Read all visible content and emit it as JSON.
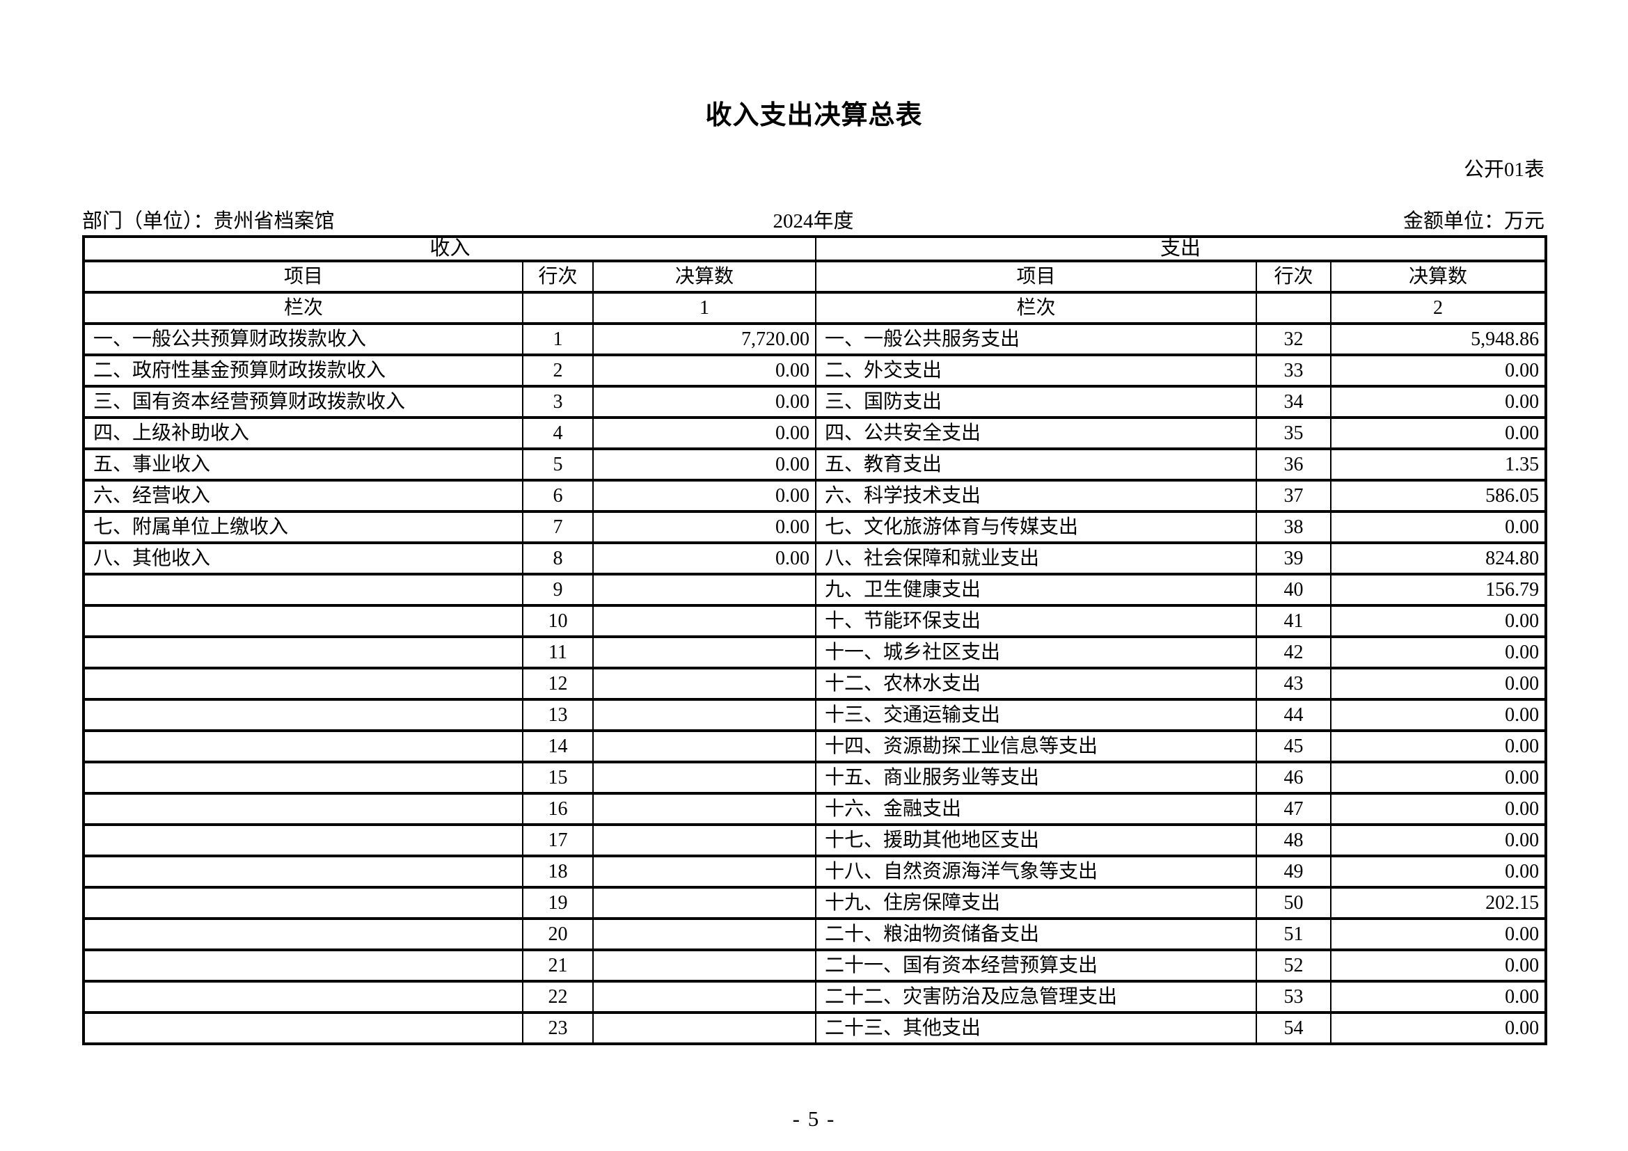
{
  "page": {
    "title": "收入支出决算总表",
    "table_code": "公开01表",
    "department": "部门（单位）：贵州省档案馆",
    "fiscal_year": "2024年度",
    "unit_note": "金额单位：万元",
    "page_number": "- 5 -"
  },
  "colors": {
    "text": "#000000",
    "border": "#000000",
    "background": "#ffffff"
  },
  "table": {
    "income_section_label": "收入",
    "expense_section_label": "支出",
    "item_col_label": "项目",
    "line_col_label": "行次",
    "amount_col_label": "决算数",
    "index_row_label": "栏次",
    "income_col_index": "1",
    "expense_col_index": "2",
    "rows": [
      {
        "income_item": "一、一般公共预算财政拨款收入",
        "income_line": "1",
        "income_amount": "7,720.00",
        "expense_item": "一、一般公共服务支出",
        "expense_line": "32",
        "expense_amount": "5,948.86"
      },
      {
        "income_item": "二、政府性基金预算财政拨款收入",
        "income_line": "2",
        "income_amount": "0.00",
        "expense_item": "二、外交支出",
        "expense_line": "33",
        "expense_amount": "0.00"
      },
      {
        "income_item": "三、国有资本经营预算财政拨款收入",
        "income_line": "3",
        "income_amount": "0.00",
        "expense_item": "三、国防支出",
        "expense_line": "34",
        "expense_amount": "0.00"
      },
      {
        "income_item": "四、上级补助收入",
        "income_line": "4",
        "income_amount": "0.00",
        "expense_item": "四、公共安全支出",
        "expense_line": "35",
        "expense_amount": "0.00"
      },
      {
        "income_item": "五、事业收入",
        "income_line": "5",
        "income_amount": "0.00",
        "expense_item": "五、教育支出",
        "expense_line": "36",
        "expense_amount": "1.35"
      },
      {
        "income_item": "六、经营收入",
        "income_line": "6",
        "income_amount": "0.00",
        "expense_item": "六、科学技术支出",
        "expense_line": "37",
        "expense_amount": "586.05"
      },
      {
        "income_item": "七、附属单位上缴收入",
        "income_line": "7",
        "income_amount": "0.00",
        "expense_item": "七、文化旅游体育与传媒支出",
        "expense_line": "38",
        "expense_amount": "0.00"
      },
      {
        "income_item": "八、其他收入",
        "income_line": "8",
        "income_amount": "0.00",
        "expense_item": "八、社会保障和就业支出",
        "expense_line": "39",
        "expense_amount": "824.80"
      },
      {
        "income_item": "",
        "income_line": "9",
        "income_amount": "",
        "expense_item": "九、卫生健康支出",
        "expense_line": "40",
        "expense_amount": "156.79"
      },
      {
        "income_item": "",
        "income_line": "10",
        "income_amount": "",
        "expense_item": "十、节能环保支出",
        "expense_line": "41",
        "expense_amount": "0.00"
      },
      {
        "income_item": "",
        "income_line": "11",
        "income_amount": "",
        "expense_item": "十一、城乡社区支出",
        "expense_line": "42",
        "expense_amount": "0.00"
      },
      {
        "income_item": "",
        "income_line": "12",
        "income_amount": "",
        "expense_item": "十二、农林水支出",
        "expense_line": "43",
        "expense_amount": "0.00"
      },
      {
        "income_item": "",
        "income_line": "13",
        "income_amount": "",
        "expense_item": "十三、交通运输支出",
        "expense_line": "44",
        "expense_amount": "0.00"
      },
      {
        "income_item": "",
        "income_line": "14",
        "income_amount": "",
        "expense_item": "十四、资源勘探工业信息等支出",
        "expense_line": "45",
        "expense_amount": "0.00"
      },
      {
        "income_item": "",
        "income_line": "15",
        "income_amount": "",
        "expense_item": "十五、商业服务业等支出",
        "expense_line": "46",
        "expense_amount": "0.00"
      },
      {
        "income_item": "",
        "income_line": "16",
        "income_amount": "",
        "expense_item": "十六、金融支出",
        "expense_line": "47",
        "expense_amount": "0.00"
      },
      {
        "income_item": "",
        "income_line": "17",
        "income_amount": "",
        "expense_item": "十七、援助其他地区支出",
        "expense_line": "48",
        "expense_amount": "0.00"
      },
      {
        "income_item": "",
        "income_line": "18",
        "income_amount": "",
        "expense_item": "十八、自然资源海洋气象等支出",
        "expense_line": "49",
        "expense_amount": "0.00"
      },
      {
        "income_item": "",
        "income_line": "19",
        "income_amount": "",
        "expense_item": "十九、住房保障支出",
        "expense_line": "50",
        "expense_amount": "202.15"
      },
      {
        "income_item": "",
        "income_line": "20",
        "income_amount": "",
        "expense_item": "二十、粮油物资储备支出",
        "expense_line": "51",
        "expense_amount": "0.00"
      },
      {
        "income_item": "",
        "income_line": "21",
        "income_amount": "",
        "expense_item": "二十一、国有资本经营预算支出",
        "expense_line": "52",
        "expense_amount": "0.00"
      },
      {
        "income_item": "",
        "income_line": "22",
        "income_amount": "",
        "expense_item": "二十二、灾害防治及应急管理支出",
        "expense_line": "53",
        "expense_amount": "0.00"
      },
      {
        "income_item": "",
        "income_line": "23",
        "income_amount": "",
        "expense_item": "二十三、其他支出",
        "expense_line": "54",
        "expense_amount": "0.00"
      }
    ]
  }
}
